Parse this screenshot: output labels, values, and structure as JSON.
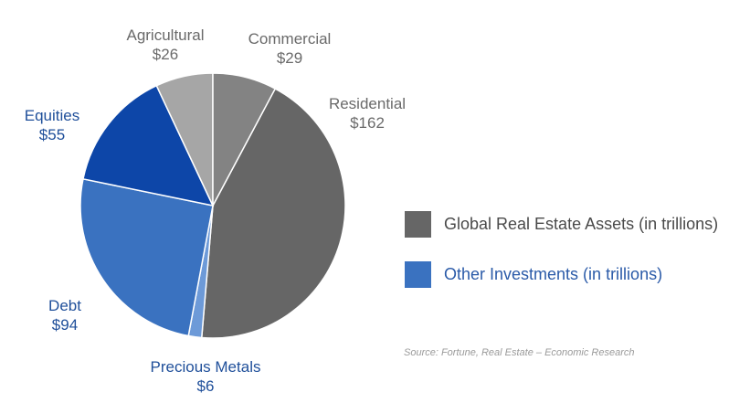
{
  "chart_data": {
    "type": "pie",
    "slices": [
      {
        "label": "Residential",
        "value": 162,
        "value_label": "$162",
        "group": "real_estate",
        "color": "#666666"
      },
      {
        "label": "Precious Metals",
        "value": 6,
        "value_label": "$6",
        "group": "other",
        "color": "#6d9ad8"
      },
      {
        "label": "Debt",
        "value": 94,
        "value_label": "$94",
        "group": "other",
        "color": "#3a72c0"
      },
      {
        "label": "Equities",
        "value": 55,
        "value_label": "$55",
        "group": "other",
        "color": "#0d46a8"
      },
      {
        "label": "Agricultural",
        "value": 26,
        "value_label": "$26",
        "group": "real_estate",
        "color": "#a6a6a6"
      },
      {
        "label": "Commercial",
        "value": 29,
        "value_label": "$29",
        "group": "real_estate",
        "color": "#838383"
      }
    ],
    "legend": [
      {
        "label": "Global Real Estate Assets (in trillions)",
        "color": "#666666"
      },
      {
        "label": "Other Investments (in trillions)",
        "color": "#3a72c0"
      }
    ],
    "legend_position": "right",
    "source": "Source:  Fortune, Real Estate – Economic Research"
  }
}
